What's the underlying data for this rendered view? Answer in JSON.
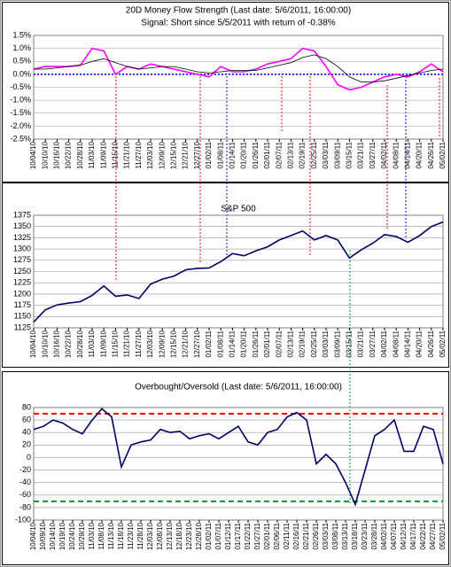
{
  "chart_data": [
    {
      "type": "line",
      "title": "20D Money Flow Strength (Last date: 5/6/2011, 16:00:00)",
      "subtitle": "Signal: Short since  5/5/2011 with return of -0.38%",
      "categories": [
        "10/04/10",
        "10/10/10",
        "10/16/10",
        "10/22/10",
        "10/28/10",
        "11/03/10",
        "11/09/10",
        "11/15/10",
        "11/21/10",
        "11/27/10",
        "12/03/10",
        "12/09/10",
        "12/15/10",
        "12/21/10",
        "12/27/10",
        "01/02/11",
        "01/08/11",
        "01/14/11",
        "01/20/11",
        "01/26/11",
        "02/01/11",
        "02/07/11",
        "02/13/11",
        "02/19/11",
        "02/25/11",
        "03/03/11",
        "03/09/11",
        "03/15/11",
        "03/21/11",
        "03/27/11",
        "04/02/11",
        "04/08/11",
        "04/14/11",
        "04/20/11",
        "04/26/11",
        "05/02/11"
      ],
      "series": [
        {
          "color": "#ff00ff",
          "values": [
            0.2,
            0.3,
            0.3,
            0.3,
            0.35,
            1.0,
            0.9,
            0.0,
            0.3,
            0.2,
            0.4,
            0.3,
            0.2,
            0.1,
            0.0,
            -0.1,
            0.3,
            0.1,
            0.1,
            0.2,
            0.4,
            0.5,
            0.6,
            1.0,
            0.9,
            0.3,
            -0.4,
            -0.6,
            -0.5,
            -0.3,
            -0.1,
            0.0,
            -0.1,
            0.1,
            0.4,
            0.1
          ]
        },
        {
          "color": "#000000",
          "values": [
            0.2,
            0.2,
            0.25,
            0.3,
            0.35,
            0.5,
            0.6,
            0.45,
            0.3,
            0.2,
            0.25,
            0.3,
            0.3,
            0.2,
            0.1,
            0.05,
            0.1,
            0.15,
            0.15,
            0.15,
            0.25,
            0.35,
            0.45,
            0.65,
            0.75,
            0.6,
            0.3,
            -0.1,
            -0.3,
            -0.3,
            -0.25,
            -0.15,
            -0.05,
            0.05,
            0.15,
            0.2
          ]
        }
      ],
      "ylim": [
        -2.5,
        1.5
      ],
      "yticks": [
        {
          "value": 1.5,
          "label": "1.5%"
        },
        {
          "value": 1.0,
          "label": "1.0%"
        },
        {
          "value": 0.5,
          "label": "0.5%"
        },
        {
          "value": 0,
          "label": "0.0%"
        },
        {
          "value": -0.5,
          "label": "-0.5%"
        },
        {
          "value": -1.0,
          "label": "-1.0%"
        },
        {
          "value": -1.5,
          "label": "-1.5%"
        },
        {
          "value": -2.0,
          "label": "-2.0%"
        },
        {
          "value": -2.5,
          "label": "-2.5%"
        }
      ],
      "grid": true,
      "hlines": [
        {
          "value": 0,
          "color": "#0000ff",
          "style": "dotted"
        }
      ]
    },
    {
      "type": "line",
      "title": "S&P 500",
      "categories": [
        "10/04/10",
        "10/10/10",
        "10/16/10",
        "10/22/10",
        "10/28/10",
        "11/03/10",
        "11/09/10",
        "11/15/10",
        "11/21/10",
        "11/27/10",
        "12/03/10",
        "12/09/10",
        "12/15/10",
        "12/21/10",
        "12/27/10",
        "01/02/11",
        "01/08/11",
        "01/14/11",
        "01/20/11",
        "01/26/11",
        "02/01/11",
        "02/07/11",
        "02/13/11",
        "02/19/11",
        "02/25/11",
        "03/03/11",
        "03/09/11",
        "03/15/11",
        "03/21/11",
        "03/27/11",
        "04/02/11",
        "04/08/11",
        "04/14/11",
        "04/20/11",
        "04/26/11",
        "05/02/11"
      ],
      "series": [
        {
          "color": "#000066",
          "values": [
            1138,
            1165,
            1176,
            1180,
            1183,
            1197,
            1218,
            1195,
            1198,
            1190,
            1222,
            1233,
            1240,
            1254,
            1257,
            1258,
            1272,
            1290,
            1285,
            1296,
            1305,
            1320,
            1330,
            1340,
            1320,
            1330,
            1320,
            1280,
            1298,
            1313,
            1332,
            1328,
            1315,
            1330,
            1350,
            1360
          ]
        }
      ],
      "ylim": [
        1125,
        1375
      ],
      "yticks": [
        1375,
        1350,
        1325,
        1300,
        1275,
        1250,
        1225,
        1200,
        1175,
        1150,
        1125
      ],
      "grid": true
    },
    {
      "type": "line",
      "title": "Overbought/Oversold (Last date: 5/6/2011, 16:00:00)",
      "categories": [
        "10/04/10",
        "10/09/10",
        "10/14/10",
        "10/19/10",
        "10/24/10",
        "10/29/10",
        "11/03/10",
        "11/08/10",
        "11/13/10",
        "11/18/10",
        "11/23/10",
        "11/28/10",
        "12/03/10",
        "12/08/10",
        "12/13/10",
        "12/18/10",
        "12/23/10",
        "12/28/10",
        "01/02/11",
        "01/07/11",
        "01/12/11",
        "01/17/11",
        "01/22/11",
        "01/27/11",
        "02/01/11",
        "02/06/11",
        "02/11/11",
        "02/16/11",
        "02/21/11",
        "02/26/11",
        "03/03/11",
        "03/08/11",
        "03/13/11",
        "03/18/11",
        "03/23/11",
        "03/28/11",
        "04/02/11",
        "04/07/11",
        "04/12/11",
        "04/17/11",
        "04/22/11",
        "04/27/11",
        "05/02/11"
      ],
      "series": [
        {
          "color": "#000066",
          "values": [
            45,
            50,
            60,
            55,
            45,
            38,
            60,
            78,
            65,
            -15,
            20,
            25,
            28,
            45,
            40,
            42,
            30,
            35,
            38,
            30,
            40,
            50,
            25,
            20,
            40,
            45,
            65,
            72,
            60,
            -10,
            5,
            -10,
            -40,
            -75,
            -20,
            35,
            45,
            60,
            10,
            10,
            50,
            45,
            -10
          ]
        }
      ],
      "ylim": [
        -100,
        80
      ],
      "yticks": [
        80,
        60,
        40,
        20,
        0,
        -20,
        -40,
        -60,
        -80,
        -100
      ],
      "grid": true,
      "hlines": [
        {
          "value": 70,
          "color": "#ff0000",
          "style": "dashed"
        },
        {
          "value": -70,
          "color": "#009933",
          "style": "dashed"
        }
      ]
    }
  ]
}
